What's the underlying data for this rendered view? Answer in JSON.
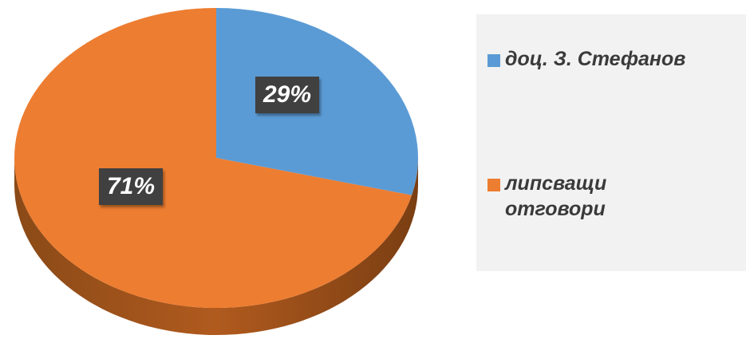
{
  "chart_data": {
    "type": "pie",
    "categories": [
      "доц. З. Стефанов",
      "липсващи отговори"
    ],
    "values": [
      29,
      71
    ],
    "labels": [
      "29%",
      "71%"
    ],
    "colors": [
      "#5b9bd5",
      "#ed7d31"
    ],
    "title": "",
    "legend_position": "right"
  }
}
